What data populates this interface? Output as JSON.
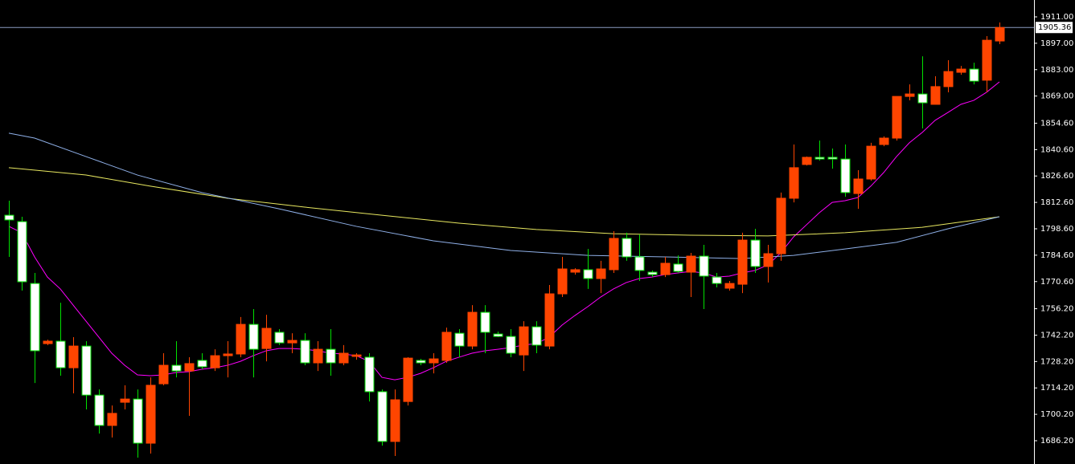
{
  "chart_data": {
    "type": "candlestick",
    "ylim": [
      1673.85,
      1919.94
    ],
    "yticks": [
      {
        "value": 1911,
        "label": "1911.00"
      },
      {
        "value": 1897,
        "label": "1897.00"
      },
      {
        "value": 1883,
        "label": "1883.00"
      },
      {
        "value": 1869,
        "label": "1869.00"
      },
      {
        "value": 1854.6,
        "label": "1854.60"
      },
      {
        "value": 1840.6,
        "label": "1840.60"
      },
      {
        "value": 1826.6,
        "label": "1826.60"
      },
      {
        "value": 1812.6,
        "label": "1812.60"
      },
      {
        "value": 1798.6,
        "label": "1798.60"
      },
      {
        "value": 1784.6,
        "label": "1784.60"
      },
      {
        "value": 1770.6,
        "label": "1770.60"
      },
      {
        "value": 1756.2,
        "label": "1756.20"
      },
      {
        "value": 1742.2,
        "label": "1742.20"
      },
      {
        "value": 1728.2,
        "label": "1728.20"
      },
      {
        "value": 1714.2,
        "label": "1714.20"
      },
      {
        "value": 1700.2,
        "label": "1700.20"
      },
      {
        "value": 1686.2,
        "label": "1686.20"
      }
    ],
    "current_price": 1905.36,
    "up_color": "#ff4500",
    "down_color": "#ffffff",
    "down_wick_color": "#00e000",
    "open": [
      1805.8,
      1802.4,
      1769.6,
      1737.7,
      1739.0,
      1724.9,
      1736.4,
      1710.4,
      1694.3,
      1706.6,
      1708.3,
      1684.9,
      1716.4,
      1726.2,
      1723.2,
      1728.8,
      1724.9,
      1731.3,
      1732.2,
      1747.9,
      1735.1,
      1743.7,
      1738.1,
      1739.4,
      1727.5,
      1734.7,
      1727.5,
      1730.9,
      1730.5,
      1712.2,
      1685.8,
      1707.0,
      1728.8,
      1727.5,
      1728.8,
      1743.2,
      1736.4,
      1754.3,
      1742.8,
      1741.5,
      1731.7,
      1746.6,
      1736.4,
      1764.1,
      1775.6,
      1776.9,
      1772.2,
      1776.9,
      1793.5,
      1783.7,
      1775.6,
      1774.3,
      1779.9,
      1775.6,
      1784.1,
      1773.0,
      1767.1,
      1769.2,
      1792.6,
      1778.6,
      1785.4,
      1814.8,
      1832.7,
      1836.5,
      1836.5,
      1835.6,
      1817.3,
      1825.0,
      1843.3,
      1846.7,
      1868.8,
      1870.1,
      1864.6,
      1874.0,
      1881.6,
      1883.3,
      1877.4,
      1898.2
    ],
    "high": [
      1813.5,
      1805.0,
      1775.2,
      1739.8,
      1759.4,
      1741.1,
      1739.0,
      1713.4,
      1704.9,
      1715.6,
      1713.4,
      1719.8,
      1732.6,
      1739.0,
      1730.5,
      1732.6,
      1734.7,
      1739.0,
      1751.8,
      1756.0,
      1753.0,
      1745.4,
      1743.2,
      1743.2,
      1739.0,
      1745.4,
      1736.9,
      1732.6,
      1732.6,
      1713.4,
      1713.4,
      1730.5,
      1729.6,
      1732.6,
      1746.2,
      1745.4,
      1758.1,
      1758.1,
      1744.1,
      1745.4,
      1749.6,
      1749.6,
      1768.8,
      1783.7,
      1777.7,
      1787.9,
      1781.6,
      1797.3,
      1796.5,
      1795.6,
      1776.5,
      1783.7,
      1784.5,
      1785.8,
      1790.1,
      1775.2,
      1770.9,
      1796.5,
      1798.6,
      1790.1,
      1817.8,
      1843.3,
      1836.9,
      1845.4,
      1841.2,
      1843.3,
      1829.7,
      1844.2,
      1847.6,
      1868.8,
      1875.2,
      1890.1,
      1879.5,
      1888.0,
      1885.0,
      1886.7,
      1900.8,
      1908.0
    ],
    "low": [
      1783.7,
      1765.8,
      1716.8,
      1736.9,
      1720.7,
      1711.3,
      1702.8,
      1690.0,
      1687.9,
      1702.8,
      1677.2,
      1679.4,
      1715.6,
      1719.8,
      1699.4,
      1724.1,
      1723.2,
      1719.8,
      1730.5,
      1719.8,
      1728.3,
      1736.9,
      1732.6,
      1726.2,
      1723.2,
      1720.7,
      1726.2,
      1729.2,
      1707.0,
      1683.6,
      1678.1,
      1704.9,
      1726.2,
      1721.9,
      1727.5,
      1730.5,
      1734.7,
      1732.6,
      1741.1,
      1730.5,
      1723.2,
      1732.6,
      1734.7,
      1762.4,
      1774.3,
      1766.7,
      1764.5,
      1775.2,
      1781.6,
      1770.9,
      1773.0,
      1773.0,
      1775.2,
      1762.4,
      1756.0,
      1767.5,
      1765.8,
      1764.5,
      1775.2,
      1770.1,
      1781.6,
      1812.6,
      1832.2,
      1834.8,
      1830.5,
      1815.6,
      1809.2,
      1824.1,
      1842.4,
      1845.4,
      1866.7,
      1851.8,
      1864.6,
      1871.0,
      1880.3,
      1875.2,
      1871.0,
      1896.5
    ],
    "close": [
      1803.3,
      1770.5,
      1733.9,
      1739.0,
      1724.9,
      1736.4,
      1710.4,
      1694.3,
      1700.7,
      1708.3,
      1684.9,
      1715.6,
      1726.2,
      1723.2,
      1727.1,
      1725.4,
      1731.3,
      1732.2,
      1747.9,
      1734.7,
      1745.8,
      1738.1,
      1739.4,
      1727.5,
      1734.7,
      1727.5,
      1732.6,
      1731.7,
      1712.2,
      1685.8,
      1707.9,
      1730.0,
      1727.5,
      1729.6,
      1743.7,
      1736.4,
      1754.3,
      1743.7,
      1741.5,
      1732.6,
      1746.6,
      1736.9,
      1764.1,
      1777.3,
      1776.9,
      1772.2,
      1777.3,
      1793.5,
      1783.7,
      1776.5,
      1774.3,
      1780.3,
      1776.0,
      1784.1,
      1773.5,
      1769.6,
      1769.6,
      1792.6,
      1778.6,
      1785.4,
      1814.8,
      1831.0,
      1836.5,
      1835.6,
      1835.6,
      1817.8,
      1825.0,
      1842.4,
      1846.7,
      1868.8,
      1870.1,
      1865.4,
      1874.0,
      1882.0,
      1883.3,
      1876.9,
      1898.6,
      1905.36
    ],
    "series": [
      {
        "color": "#ff00ff",
        "values": [
          1799.9,
          1796.5,
          1783.7,
          1773.0,
          1766.7,
          1758.1,
          1749.6,
          1741.1,
          1732.6,
          1726.2,
          1721.1,
          1720.7,
          1721.1,
          1722.4,
          1722.8,
          1724.1,
          1724.9,
          1726.2,
          1728.3,
          1731.3,
          1733.9,
          1735.1,
          1735.1,
          1734.7,
          1733.9,
          1732.6,
          1732.2,
          1731.3,
          1728.3,
          1719.8,
          1718.5,
          1719.8,
          1721.9,
          1724.9,
          1728.3,
          1730.5,
          1732.6,
          1733.9,
          1734.7,
          1735.6,
          1736.9,
          1737.7,
          1741.1,
          1747.5,
          1752.6,
          1757.3,
          1762.4,
          1766.7,
          1770.1,
          1772.2,
          1773.0,
          1774.3,
          1775.2,
          1776.0,
          1775.2,
          1773.0,
          1773.5,
          1775.2,
          1776.5,
          1779.4,
          1785.8,
          1794.3,
          1800.7,
          1807.1,
          1812.6,
          1813.5,
          1815.2,
          1821.2,
          1828.4,
          1836.9,
          1844.2,
          1849.7,
          1856.1,
          1860.3,
          1864.6,
          1866.7,
          1871.0,
          1876.5
        ]
      },
      {
        "color": "#e8e860",
        "x": [
          0,
          6,
          11,
          17,
          23,
          29,
          35,
          41,
          47,
          53,
          59,
          65,
          71,
          77
        ],
        "values": [
          1831.0,
          1827.1,
          1821.2,
          1814.8,
          1810.1,
          1805.8,
          1801.6,
          1798.2,
          1796.0,
          1795.2,
          1794.8,
          1796.5,
          1799.4,
          1805.0
        ]
      },
      {
        "color": "#8fb0e8",
        "x": [
          0,
          2,
          6,
          10,
          15,
          21,
          27,
          33,
          39,
          45,
          51,
          57,
          61,
          65,
          69,
          73,
          77
        ],
        "values": [
          1849.3,
          1846.7,
          1836.9,
          1827.1,
          1817.8,
          1809.2,
          1799.9,
          1792.2,
          1787.1,
          1784.5,
          1783.7,
          1782.8,
          1784.5,
          1787.9,
          1791.4,
          1798.6,
          1805.0
        ]
      }
    ]
  }
}
